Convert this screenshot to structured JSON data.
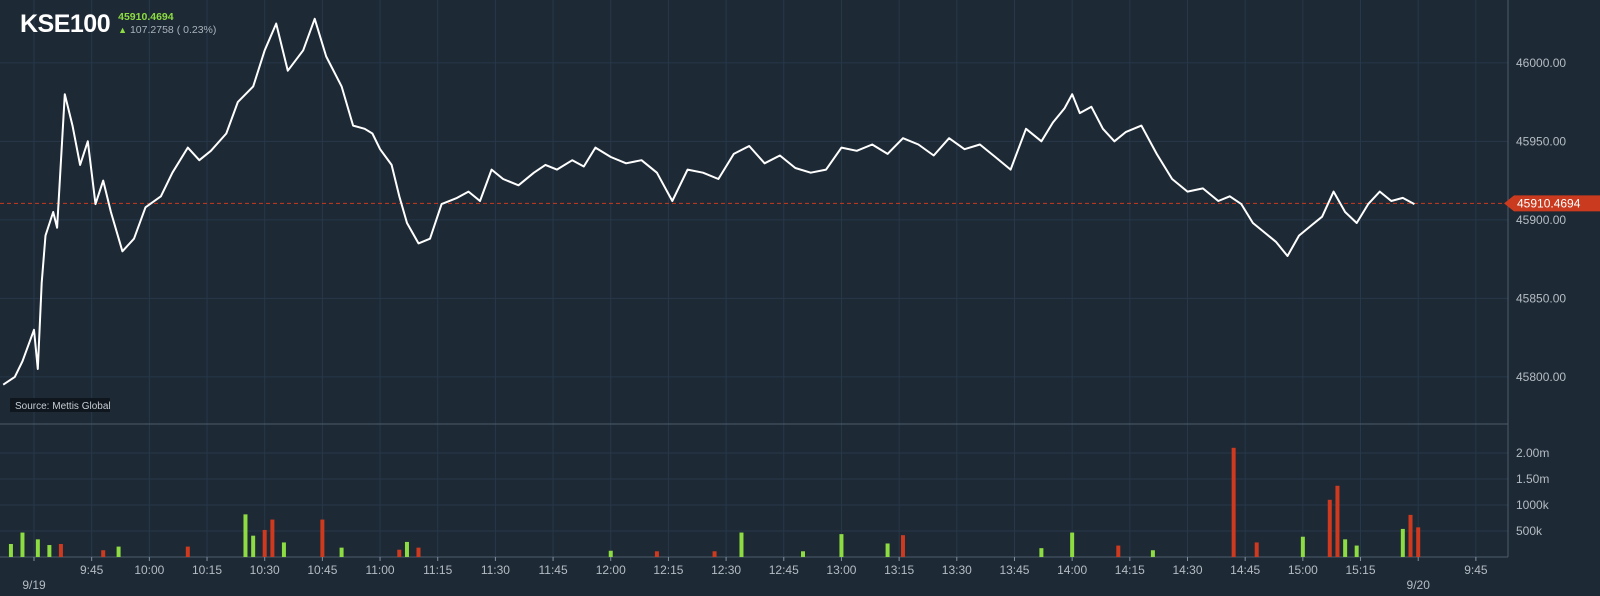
{
  "header": {
    "ticker": "KSE100",
    "last_price": "45910.4694",
    "change": "107.2758",
    "change_pct": "( 0.23%)",
    "direction": "up"
  },
  "source_label": "Source: Mettis Global",
  "current_price_label": "45910.4694",
  "colors": {
    "background": "#1d2935",
    "grid": "#27384a",
    "line": "#ffffff",
    "up_volume": "#8ddc41",
    "down_volume": "#cf3a1f",
    "price_marker": "#c93a1e",
    "axis_text": "#b4bcc4"
  },
  "chart_data": [
    {
      "type": "line",
      "title": "",
      "xlabel": "",
      "ylabel": "",
      "ylim": [
        45770,
        46040
      ],
      "yticks": [
        "45800.00",
        "45850.00",
        "45900.00",
        "45950.00",
        "46000.00"
      ],
      "ytick_values": [
        45800,
        45850,
        45900,
        45950,
        46000
      ],
      "xticks": [
        "9/19",
        "9:45",
        "10:00",
        "10:15",
        "10:30",
        "10:45",
        "11:00",
        "11:15",
        "11:30",
        "11:45",
        "12:00",
        "12:15",
        "12:30",
        "12:45",
        "13:00",
        "13:15",
        "13:30",
        "13:45",
        "14:00",
        "14:15",
        "14:30",
        "14:45",
        "15:00",
        "15:15",
        "9/20",
        "9:45"
      ],
      "xtick_minutes": [
        0,
        15,
        30,
        45,
        60,
        75,
        90,
        105,
        120,
        135,
        150,
        165,
        180,
        195,
        210,
        225,
        240,
        255,
        270,
        285,
        300,
        315,
        330,
        345,
        360,
        375
      ],
      "x_minutes": [
        -8,
        -5,
        -3,
        0,
        1,
        2,
        3,
        5,
        6,
        8,
        10,
        12,
        14,
        16,
        18,
        20,
        23,
        26,
        29,
        33,
        36,
        40,
        43,
        46,
        50,
        53,
        57,
        60,
        63,
        66,
        70,
        73,
        76,
        80,
        83,
        86,
        88,
        90,
        93,
        95,
        97,
        100,
        103,
        106,
        110,
        113,
        116,
        119,
        122,
        126,
        130,
        133,
        136,
        140,
        143,
        146,
        150,
        154,
        158,
        162,
        166,
        170,
        174,
        178,
        182,
        186,
        190,
        194,
        198,
        202,
        206,
        210,
        214,
        218,
        222,
        226,
        230,
        234,
        238,
        242,
        246,
        250,
        254,
        258,
        262,
        265,
        268,
        270,
        272,
        275,
        278,
        281,
        284,
        288,
        292,
        296,
        300,
        304,
        308,
        311,
        314,
        317,
        320,
        323,
        326,
        329,
        332,
        335,
        338,
        341,
        344,
        347,
        350,
        353,
        356,
        359
      ],
      "series": [
        {
          "values": [
            45795,
            45800,
            45810,
            45830,
            45805,
            45860,
            45890,
            45905,
            45895,
            45980,
            45960,
            45935,
            45950,
            45910,
            45925,
            45905,
            45880,
            45888,
            45908,
            45915,
            45930,
            45946,
            45938,
            45944,
            45955,
            45975,
            45985,
            46008,
            46025,
            45995,
            46008,
            46028,
            46004,
            45985,
            45960,
            45958,
            45955,
            45945,
            45935,
            45915,
            45898,
            45885,
            45888,
            45910,
            45914,
            45918,
            45912,
            45932,
            45926,
            45922,
            45930,
            45935,
            45932,
            45938,
            45934,
            45946,
            45940,
            45936,
            45938,
            45930,
            45912,
            45932,
            45930,
            45926,
            45942,
            45947,
            45936,
            45941,
            45933,
            45930,
            45932,
            45946,
            45944,
            45948,
            45942,
            45952,
            45948,
            45941,
            45952,
            45945,
            45948,
            45940,
            45932,
            45958,
            45950,
            45962,
            45971,
            45980,
            45968,
            45972,
            45958,
            45950,
            45956,
            45960,
            45942,
            45926,
            45918,
            45920,
            45912,
            45915,
            45910,
            45898,
            45892,
            45886,
            45877,
            45890,
            45896,
            45902,
            45918,
            45905,
            45898,
            45910,
            45918,
            45912,
            45914,
            45910
          ]
        }
      ]
    },
    {
      "type": "bar",
      "title": "",
      "ylim": [
        0,
        2250
      ],
      "ylabel": "",
      "yticks": [
        "500k",
        "1000k",
        "1.50m",
        "2.00m"
      ],
      "ytick_values": [
        500,
        1000,
        1500,
        2000
      ],
      "units": "thousands of shares",
      "xticks": [
        "9/19",
        "9:45",
        "10:00",
        "10:15",
        "10:30",
        "10:45",
        "11:00",
        "11:15",
        "11:30",
        "11:45",
        "12:00",
        "12:15",
        "12:30",
        "12:45",
        "13:00",
        "13:15",
        "13:30",
        "13:45",
        "14:00",
        "14:15",
        "14:30",
        "14:45",
        "15:00",
        "15:15",
        "9/20",
        "9:45"
      ],
      "x_minutes": [
        -10,
        -6,
        -3,
        1,
        4,
        7,
        18,
        22,
        40,
        55,
        57,
        60,
        62,
        65,
        75,
        80,
        95,
        97,
        100,
        150,
        162,
        177,
        184,
        200,
        210,
        222,
        226,
        262,
        270,
        282,
        291,
        312,
        318,
        330,
        337,
        339,
        341,
        344,
        356,
        358,
        360
      ],
      "values": [
        320,
        250,
        470,
        340,
        230,
        250,
        130,
        200,
        200,
        820,
        410,
        520,
        720,
        280,
        720,
        180,
        140,
        290,
        180,
        120,
        110,
        110,
        470,
        110,
        440,
        260,
        420,
        170,
        470,
        220,
        130,
        2100,
        280,
        390,
        1100,
        1370,
        340,
        220,
        540,
        810,
        570
      ],
      "up": [
        false,
        true,
        true,
        true,
        true,
        false,
        false,
        true,
        false,
        true,
        true,
        false,
        false,
        true,
        false,
        true,
        false,
        true,
        false,
        true,
        false,
        false,
        true,
        true,
        true,
        true,
        false,
        true,
        true,
        false,
        true,
        false,
        false,
        true,
        false,
        false,
        true,
        true,
        true,
        false,
        false
      ]
    }
  ]
}
